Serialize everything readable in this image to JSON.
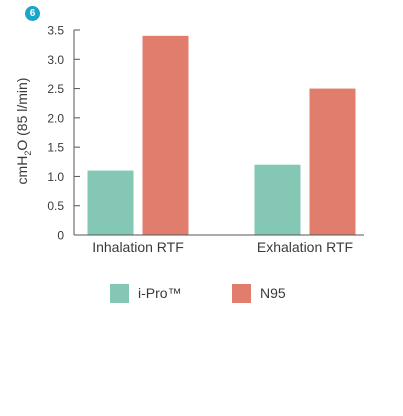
{
  "figure_number": "6",
  "colors": {
    "badge": "#1aa6c9",
    "series_1": "#85c7b5",
    "series_2": "#e07d6c",
    "axis": "#555555"
  },
  "chart_data": {
    "type": "bar",
    "categories": [
      "Inhalation RTF",
      "Exhalation RTF"
    ],
    "series": [
      {
        "name": "i-Pro™",
        "values": [
          1.1,
          1.2
        ],
        "color": "#85c7b5"
      },
      {
        "name": "N95",
        "values": [
          3.4,
          2.5
        ],
        "color": "#e07d6c"
      }
    ],
    "ylabel": "cmH₂O (85 l/min)",
    "ylabel_parts": [
      "cmH",
      "2",
      "O (85 l/min)"
    ],
    "ylim": [
      0,
      3.5
    ],
    "yticks": [
      0,
      0.5,
      1.0,
      1.5,
      2.0,
      2.5,
      3.0,
      3.5
    ],
    "ytick_labels": [
      "0",
      "0.5",
      "1.0",
      "1.5",
      "2.0",
      "2.5",
      "3.0",
      "3.5"
    ],
    "grid": false,
    "legend_position": "bottom"
  }
}
